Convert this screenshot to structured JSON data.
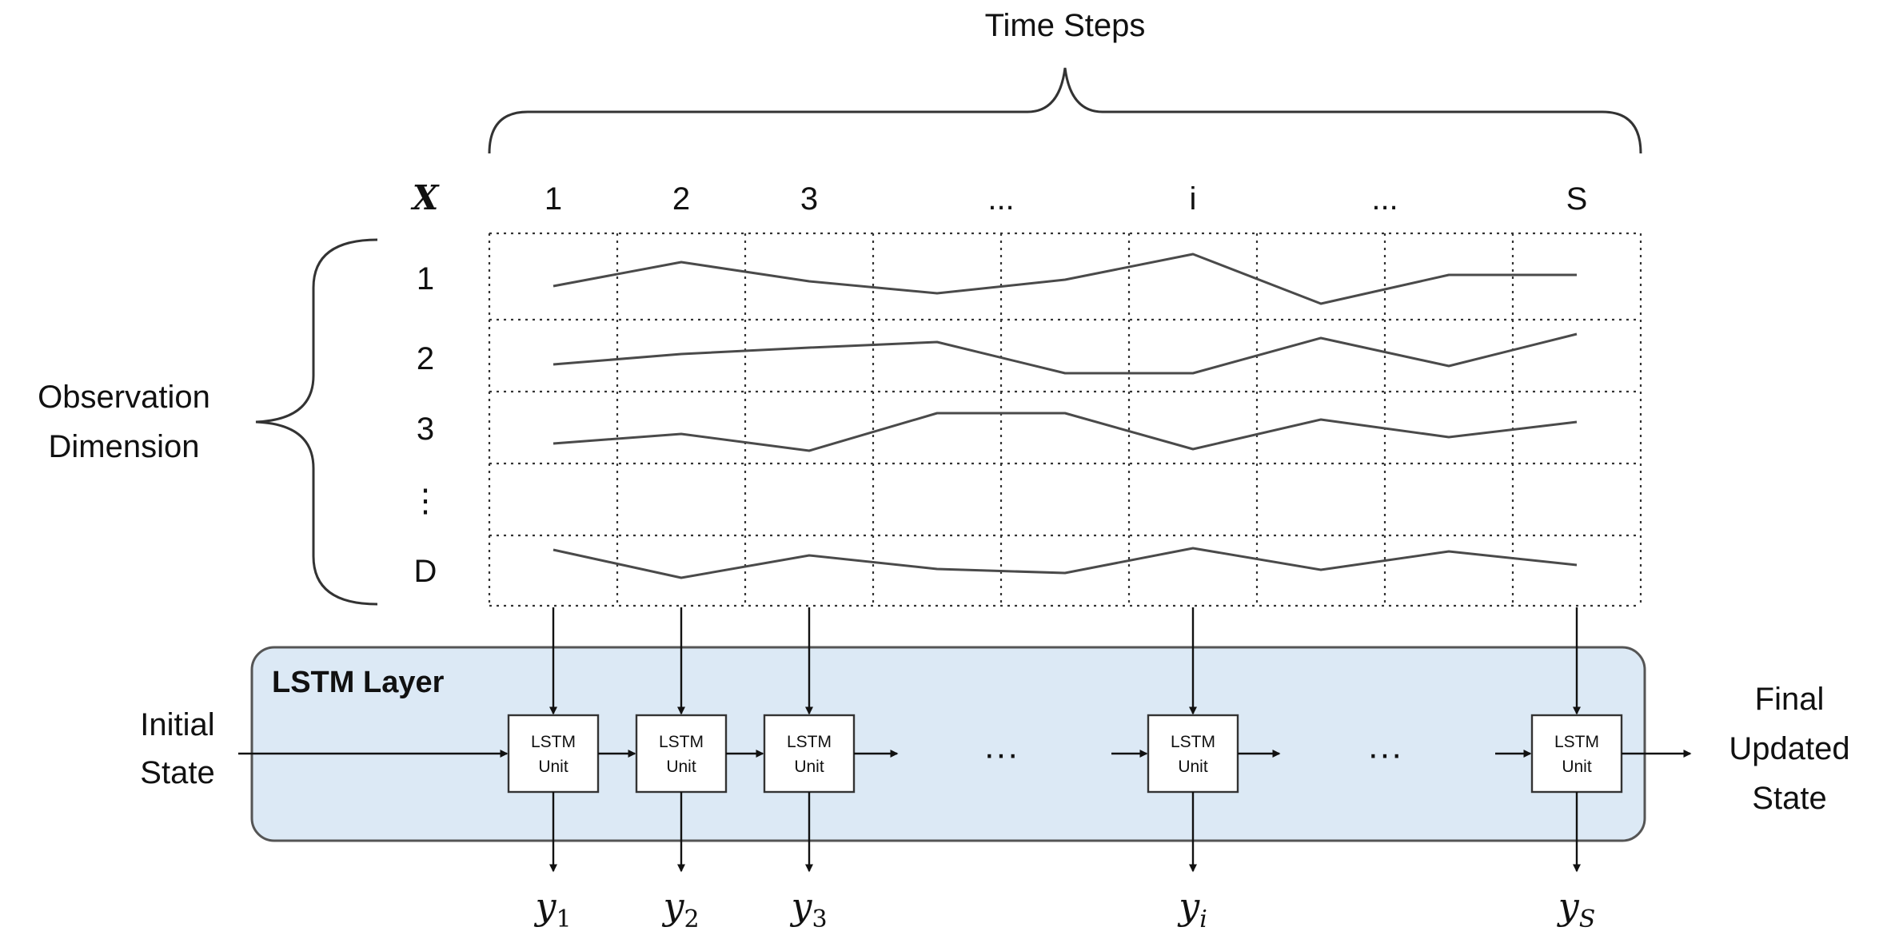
{
  "time_steps_label": "Time Steps",
  "x_symbol": "X",
  "column_labels": [
    "1",
    "2",
    "3",
    "...",
    "i",
    "...",
    "S"
  ],
  "row_labels": [
    "1",
    "2",
    "3",
    "⋮",
    "D"
  ],
  "observation_label_line1": "Observation",
  "observation_label_line2": "Dimension",
  "lstm_layer_title": "LSTM Layer",
  "lstm_unit_line1": "LSTM",
  "lstm_unit_line2": "Unit",
  "unit_count": 5,
  "initial_state_line1": "Initial",
  "initial_state_line2": "State",
  "final_state_line1": "Final",
  "final_state_line2": "Updated",
  "final_state_line3": "State",
  "ellipsis": "···",
  "outputs": [
    {
      "base": "y",
      "sub": "1"
    },
    {
      "base": "y",
      "sub": "2"
    },
    {
      "base": "y",
      "sub": "3"
    },
    {
      "base": "y",
      "sub": "i"
    },
    {
      "base": "y",
      "sub": "S"
    }
  ],
  "colors": {
    "layer_fill": "#dce9f5",
    "line": "#4a4a4a",
    "text": "#111111"
  }
}
